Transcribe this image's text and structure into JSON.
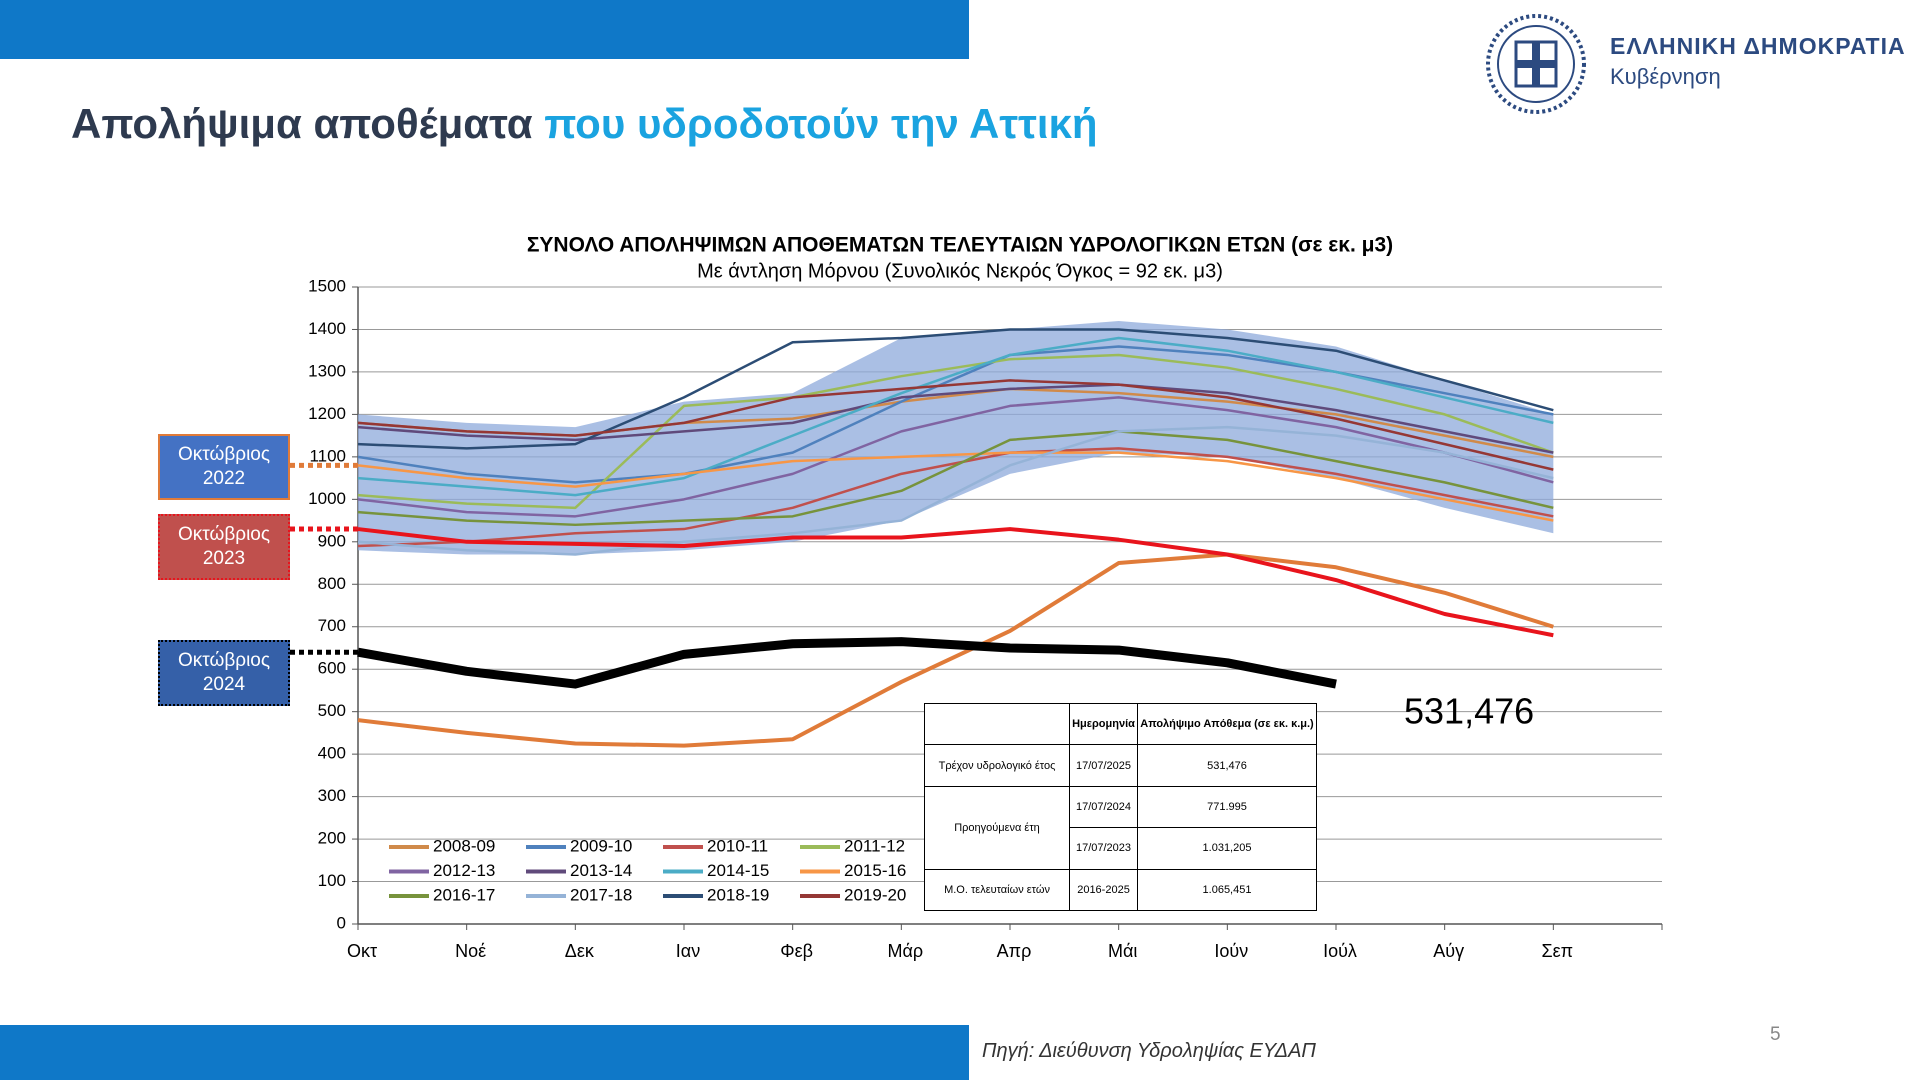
{
  "header": {
    "title_part1": "Απολήψιμα αποθέματα",
    "title_part2": "που υδροδοτούν την Αττική",
    "org_name": "ΕΛΛΗΝΙΚΗ ΔΗΜΟΚΡΑΤΙΑ",
    "org_sub": "Κυβέρνηση"
  },
  "chart_data": {
    "type": "line",
    "title": "ΣΥΝΟΛΟ ΑΠΟΛΗΨΙΜΩΝ ΑΠΟΘΕΜΑΤΩΝ ΤΕΛΕΥΤΑΙΩΝ ΥΔΡΟΛΟΓΙΚΩΝ ΕΤΩΝ  (σε εκ. μ3)",
    "subtitle": "Με άντληση Μόρνου (Συνολικός Νεκρός Όγκος = 92 εκ. μ3)",
    "categories": [
      "Οκτ",
      "Νοέ",
      "Δεκ",
      "Ιαν",
      "Φεβ",
      "Μάρ",
      "Απρ",
      "Μάι",
      "Ιούν",
      "Ιούλ",
      "Αύγ",
      "Σεπ"
    ],
    "ylim": [
      0,
      1500
    ],
    "yticks": [
      0,
      100,
      200,
      300,
      400,
      500,
      600,
      700,
      800,
      900,
      1000,
      1100,
      1200,
      1300,
      1400,
      1500
    ],
    "grid": true,
    "band": {
      "color": "#8eaadb",
      "upper": [
        1200,
        1180,
        1170,
        1230,
        1250,
        1380,
        1400,
        1420,
        1400,
        1360,
        1280,
        1200
      ],
      "lower": [
        880,
        870,
        870,
        880,
        900,
        950,
        1060,
        1110,
        1100,
        1050,
        980,
        920
      ]
    },
    "series": [
      {
        "name": "2008-09",
        "color": "#d08a4a",
        "values": [
          1180,
          1160,
          1150,
          1180,
          1190,
          1230,
          1260,
          1250,
          1230,
          1200,
          1150,
          1100
        ]
      },
      {
        "name": "2009-10",
        "color": "#4f81bd",
        "values": [
          1100,
          1060,
          1040,
          1060,
          1110,
          1230,
          1340,
          1360,
          1340,
          1300,
          1250,
          1200
        ]
      },
      {
        "name": "2010-11",
        "color": "#c0504d",
        "values": [
          890,
          900,
          920,
          930,
          980,
          1060,
          1110,
          1120,
          1100,
          1060,
          1010,
          960
        ]
      },
      {
        "name": "2011-12",
        "color": "#9bbb59",
        "values": [
          1010,
          990,
          980,
          1220,
          1240,
          1290,
          1330,
          1340,
          1310,
          1260,
          1200,
          1110
        ]
      },
      {
        "name": "2012-13",
        "color": "#8064a2",
        "values": [
          1000,
          970,
          960,
          1000,
          1060,
          1160,
          1220,
          1240,
          1210,
          1170,
          1110,
          1040
        ]
      },
      {
        "name": "2013-14",
        "color": "#604a7b",
        "values": [
          1170,
          1150,
          1140,
          1160,
          1180,
          1240,
          1260,
          1270,
          1250,
          1210,
          1160,
          1110
        ]
      },
      {
        "name": "2014-15",
        "color": "#4bacc6",
        "values": [
          1050,
          1030,
          1010,
          1050,
          1150,
          1250,
          1340,
          1380,
          1350,
          1300,
          1240,
          1180
        ]
      },
      {
        "name": "2015-16",
        "color": "#f79646",
        "values": [
          1080,
          1050,
          1030,
          1060,
          1090,
          1100,
          1110,
          1110,
          1090,
          1050,
          1000,
          950
        ]
      },
      {
        "name": "2016-17",
        "color": "#77933c",
        "values": [
          970,
          950,
          940,
          950,
          960,
          1020,
          1140,
          1160,
          1140,
          1090,
          1040,
          980
        ]
      },
      {
        "name": "2017-18",
        "color": "#95b3d7",
        "values": [
          900,
          880,
          870,
          900,
          920,
          950,
          1080,
          1160,
          1170,
          1150,
          1110,
          1050
        ]
      },
      {
        "name": "2018-19",
        "color": "#2c4d75",
        "values": [
          1130,
          1120,
          1130,
          1240,
          1370,
          1380,
          1400,
          1400,
          1380,
          1350,
          1280,
          1210
        ]
      },
      {
        "name": "2019-20",
        "color": "#953735",
        "values": [
          1180,
          1160,
          1150,
          1180,
          1240,
          1260,
          1280,
          1270,
          1240,
          1190,
          1130,
          1070
        ]
      },
      {
        "color": "#e07b39",
        "values": [
          480,
          450,
          425,
          420,
          435,
          570,
          690,
          850,
          870,
          840,
          780,
          700
        ]
      },
      {
        "color": "#e8141c",
        "values": [
          930,
          900,
          895,
          890,
          910,
          910,
          930,
          905,
          870,
          810,
          730,
          680
        ]
      },
      {
        "color": "#000000",
        "values": [
          640,
          595,
          565,
          635,
          660,
          665,
          650,
          645,
          615,
          565,
          null,
          null
        ]
      }
    ],
    "annotation": "531,476",
    "callouts": [
      "Οκτώβριος 2022",
      "Οκτώβριος 2023",
      "Οκτώβριος 2024"
    ]
  },
  "table": {
    "headers": [
      "Ημερομηνία",
      "Απολήψιμο Απόθεμα (σε εκ. κ.μ.)"
    ],
    "rows": [
      [
        "Τρέχον υδρολογικό έτος",
        "17/07/2025",
        "531,476"
      ],
      [
        "Προηγούμενα έτη",
        "17/07/2024",
        "771.995"
      ],
      [
        "17/07/2023",
        "1.031,205"
      ],
      [
        "Μ.Ο. τελευταίων ετών",
        "2016-2025",
        "1.065,451"
      ]
    ]
  },
  "footer": {
    "source": "Πηγή: Διεύθυνση Υδροληψίας ΕΥΔΑΠ",
    "page": "5"
  }
}
